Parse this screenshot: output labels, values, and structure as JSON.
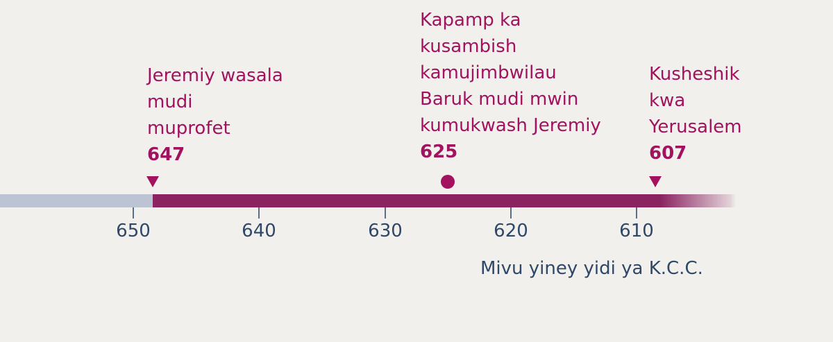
{
  "events": [
    {
      "label": "Jeremiy wasala\nmudi\nmuprofet",
      "year": "647",
      "marker": "triangle"
    },
    {
      "label": "Kapamp ka\nkusambish\nkamujimbwilau\nBaruk mudi mwin\nkumukwash Jeremiy",
      "year": "625",
      "marker": "dot"
    },
    {
      "label": "Kusheshik\nkwa\nYerusalem",
      "year": "607",
      "marker": "triangle"
    }
  ],
  "axis": {
    "ticks": [
      "650",
      "640",
      "630",
      "620",
      "610"
    ],
    "caption": "Mivu yiney yidi ya K.C.C."
  },
  "colors": {
    "accent": "#a2125e",
    "bar": "#8a2360",
    "bar_before": "#bcc4d3",
    "axis_text": "#2f4868"
  }
}
